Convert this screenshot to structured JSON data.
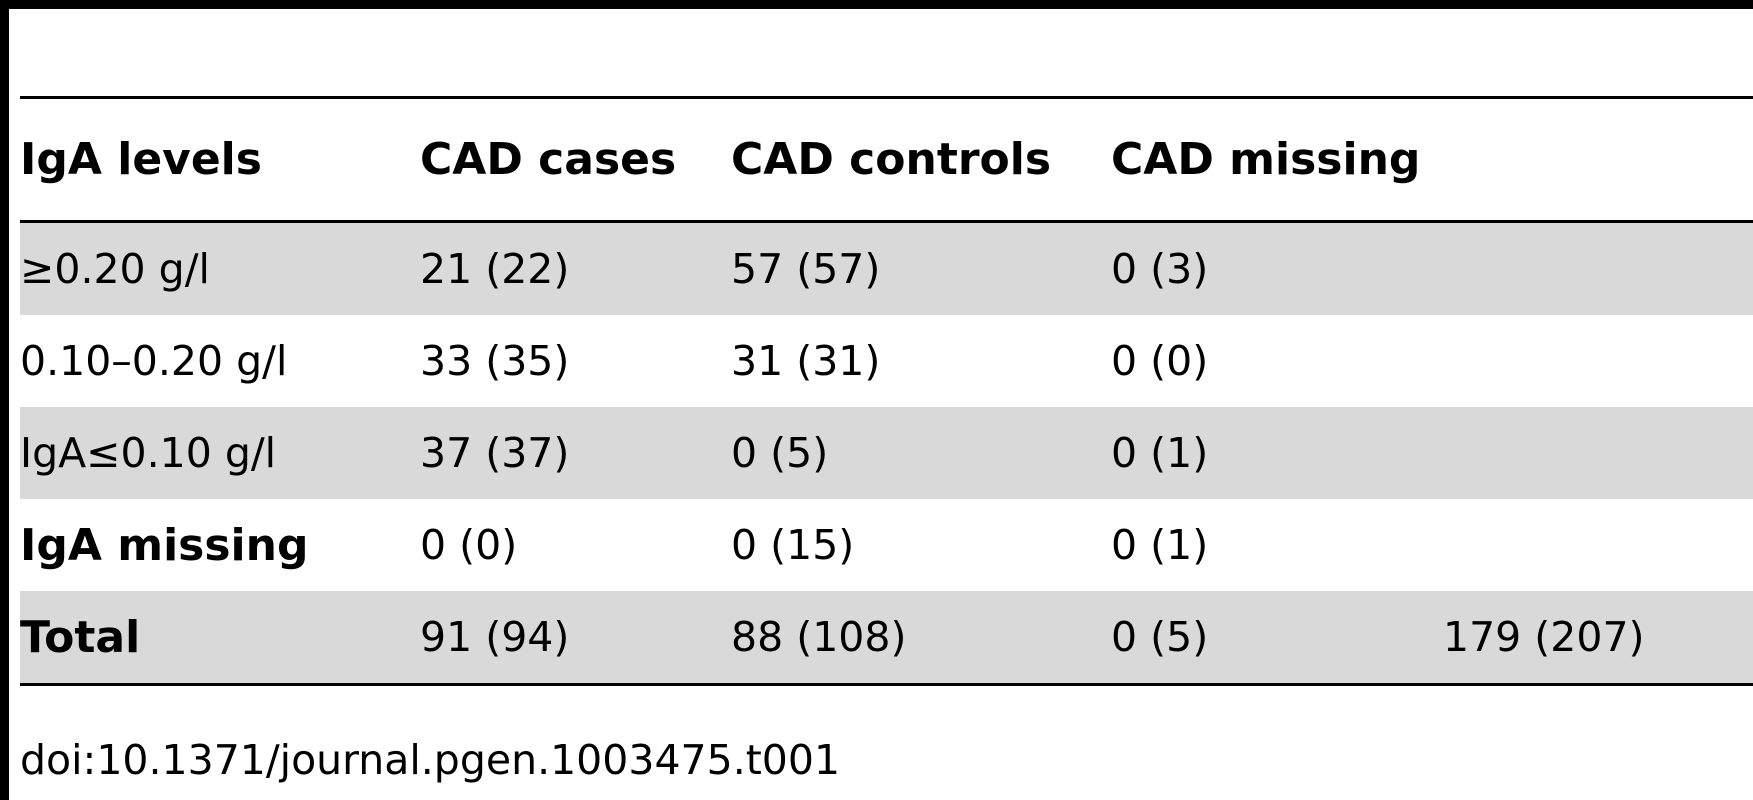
{
  "table": {
    "headers": [
      "IgA levels",
      "CAD cases",
      "CAD controls",
      "CAD missing",
      ""
    ],
    "rows": [
      {
        "label": "≥0.20 g/l",
        "cases": "21 (22)",
        "controls": "57 (57)",
        "missing": "0 (3)",
        "total": ""
      },
      {
        "label": "0.10–0.20 g/l",
        "cases": "33 (35)",
        "controls": "31 (31)",
        "missing": "0 (0)",
        "total": ""
      },
      {
        "label": "IgA≤0.10 g/l",
        "cases": "37 (37)",
        "controls": "0 (5)",
        "missing": "0 (1)",
        "total": ""
      },
      {
        "label": "IgA missing",
        "cases": "0 (0)",
        "controls": "0 (15)",
        "missing": "0 (1)",
        "total": ""
      },
      {
        "label": "Total",
        "cases": "91 (94)",
        "controls": "88 (108)",
        "missing": "0 (5)",
        "total": "179 (207)"
      }
    ]
  },
  "footnote": "doi:10.1371/journal.pgen.1003475.t001"
}
